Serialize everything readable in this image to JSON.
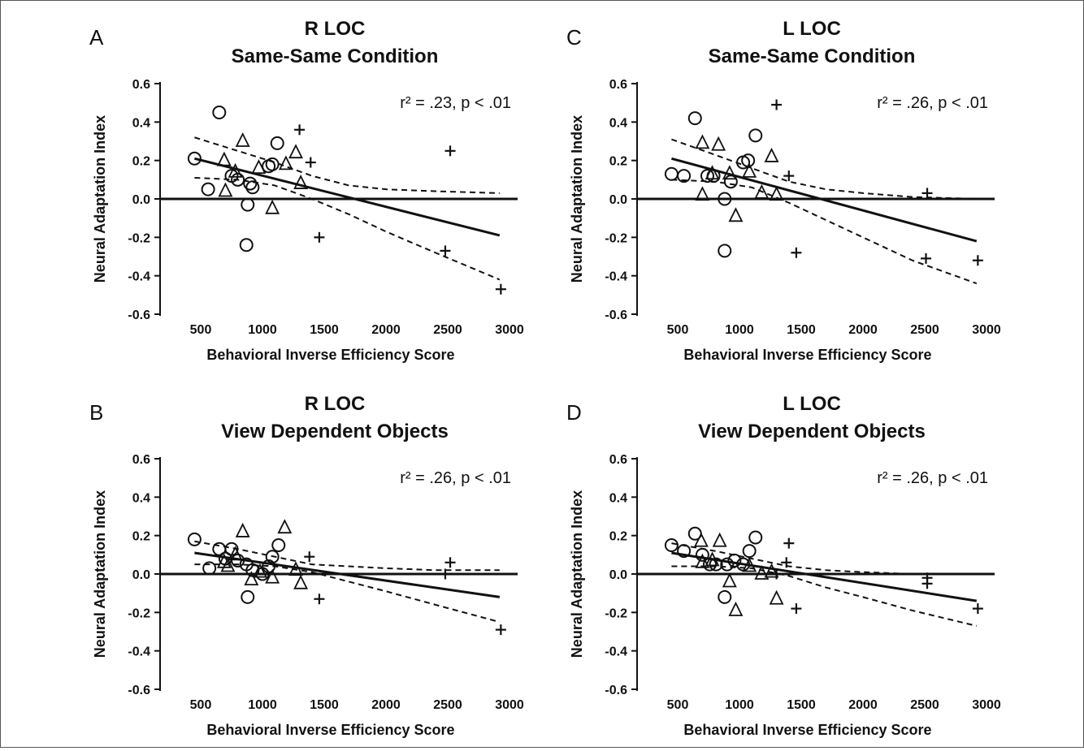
{
  "figure": {
    "panels": [
      {
        "letter": "A",
        "title_line1": "R LOC",
        "title_line2": "Same-Same Condition",
        "stat_text": "r² = .23, p < .01"
      },
      {
        "letter": "C",
        "title_line1": "L LOC",
        "title_line2": "Same-Same Condition",
        "stat_text": "r² = .26, p < .01"
      },
      {
        "letter": "B",
        "title_line1": "R LOC",
        "title_line2": "View Dependent Objects",
        "stat_text": "r² = .26, p < .01"
      },
      {
        "letter": "D",
        "title_line1": "L LOC",
        "title_line2": "View Dependent Objects",
        "stat_text": "r² = .26, p < .01"
      }
    ]
  },
  "chart_data": [
    {
      "type": "scatter",
      "panel": "A",
      "title": "R LOC Same-Same Condition",
      "xlabel": "Behavioral Inverse Efficiency Score",
      "ylabel": "Neural Adaptation Index",
      "xlim": [
        300,
        3100
      ],
      "ylim": [
        -0.6,
        0.6
      ],
      "x_ticks": [
        500,
        1000,
        1500,
        2000,
        2500,
        3000
      ],
      "y_ticks": [
        -0.6,
        -0.4,
        -0.2,
        0.0,
        0.2,
        0.4,
        0.6
      ],
      "annotation": "r² = .23, p < .01",
      "series": [
        {
          "marker": "circle",
          "points": [
            [
              450,
              0.21
            ],
            [
              560,
              0.05
            ],
            [
              650,
              0.45
            ],
            [
              750,
              0.12
            ],
            [
              800,
              0.1
            ],
            [
              880,
              -0.03
            ],
            [
              870,
              -0.24
            ],
            [
              900,
              0.08
            ],
            [
              920,
              0.06
            ],
            [
              1050,
              0.17
            ],
            [
              1080,
              0.18
            ],
            [
              1120,
              0.29
            ]
          ]
        },
        {
          "marker": "triangle",
          "points": [
            [
              690,
              0.2
            ],
            [
              700,
              0.04
            ],
            [
              780,
              0.14
            ],
            [
              840,
              0.3
            ],
            [
              970,
              0.16
            ],
            [
              1080,
              -0.05
            ],
            [
              1190,
              0.18
            ],
            [
              1270,
              0.24
            ],
            [
              1310,
              0.08
            ]
          ]
        },
        {
          "marker": "plus",
          "points": [
            [
              1300,
              0.36
            ],
            [
              1390,
              0.19
            ],
            [
              1460,
              -0.2
            ],
            [
              2520,
              0.25
            ],
            [
              2480,
              -0.27
            ],
            [
              2930,
              -0.47
            ]
          ]
        }
      ],
      "fit": {
        "x": [
          450,
          2920
        ],
        "y": [
          0.21,
          -0.19
        ]
      },
      "ci_upper": {
        "x": [
          450,
          800,
          1100,
          1400,
          1700,
          2000,
          2400,
          2920
        ],
        "y": [
          0.32,
          0.25,
          0.19,
          0.12,
          0.07,
          0.05,
          0.04,
          0.03
        ]
      },
      "ci_lower": {
        "x": [
          450,
          800,
          1100,
          1400,
          1700,
          2000,
          2400,
          2920
        ],
        "y": [
          0.11,
          0.1,
          0.07,
          0.0,
          -0.08,
          -0.17,
          -0.28,
          -0.42
        ]
      }
    },
    {
      "type": "scatter",
      "panel": "C",
      "title": "L LOC Same-Same Condition",
      "xlabel": "Behavioral Inverse Efficiency Score",
      "ylabel": "Neural Adaptation Index",
      "xlim": [
        300,
        3100
      ],
      "ylim": [
        -0.6,
        0.6
      ],
      "x_ticks": [
        500,
        1000,
        1500,
        2000,
        2500,
        3000
      ],
      "y_ticks": [
        -0.6,
        -0.4,
        -0.2,
        0.0,
        0.2,
        0.4,
        0.6
      ],
      "annotation": "r² = .26, p < .01",
      "series": [
        {
          "marker": "circle",
          "points": [
            [
              450,
              0.13
            ],
            [
              550,
              0.12
            ],
            [
              640,
              0.42
            ],
            [
              740,
              0.12
            ],
            [
              790,
              0.12
            ],
            [
              880,
              0.0
            ],
            [
              880,
              -0.27
            ],
            [
              930,
              0.09
            ],
            [
              1030,
              0.19
            ],
            [
              1070,
              0.2
            ],
            [
              1130,
              0.33
            ]
          ]
        },
        {
          "marker": "triangle",
          "points": [
            [
              700,
              0.29
            ],
            [
              700,
              0.02
            ],
            [
              780,
              0.13
            ],
            [
              830,
              0.28
            ],
            [
              920,
              0.13
            ],
            [
              970,
              -0.09
            ],
            [
              1080,
              0.14
            ],
            [
              1180,
              0.03
            ],
            [
              1260,
              0.22
            ],
            [
              1300,
              0.02
            ]
          ]
        },
        {
          "marker": "plus",
          "points": [
            [
              1300,
              0.49
            ],
            [
              1400,
              0.12
            ],
            [
              1460,
              -0.28
            ],
            [
              2520,
              0.03
            ],
            [
              2510,
              -0.31
            ],
            [
              2930,
              -0.32
            ]
          ]
        }
      ],
      "fit": {
        "x": [
          450,
          2920
        ],
        "y": [
          0.21,
          -0.22
        ]
      },
      "ci_upper": {
        "x": [
          450,
          800,
          1100,
          1400,
          1700,
          2000,
          2400,
          2920
        ],
        "y": [
          0.31,
          0.23,
          0.16,
          0.09,
          0.05,
          0.03,
          0.01,
          0.0
        ]
      },
      "ci_lower": {
        "x": [
          450,
          800,
          1100,
          1400,
          1700,
          2000,
          2400,
          2920
        ],
        "y": [
          0.1,
          0.09,
          0.06,
          -0.02,
          -0.11,
          -0.2,
          -0.32,
          -0.44
        ]
      }
    },
    {
      "type": "scatter",
      "panel": "B",
      "title": "R LOC View Dependent Objects",
      "xlabel": "Behavioral Inverse Efficiency Score",
      "ylabel": "Neural Adaptation Index",
      "xlim": [
        300,
        3100
      ],
      "ylim": [
        -0.6,
        0.6
      ],
      "x_ticks": [
        500,
        1000,
        1500,
        2000,
        2500,
        3000
      ],
      "y_ticks": [
        -0.6,
        -0.4,
        -0.2,
        0.0,
        0.2,
        0.4,
        0.6
      ],
      "annotation": "r² = .26, p < .01",
      "series": [
        {
          "marker": "circle",
          "points": [
            [
              450,
              0.18
            ],
            [
              570,
              0.03
            ],
            [
              650,
              0.13
            ],
            [
              700,
              0.08
            ],
            [
              750,
              0.13
            ],
            [
              800,
              0.07
            ],
            [
              870,
              0.05
            ],
            [
              880,
              -0.12
            ],
            [
              920,
              0.02
            ],
            [
              1000,
              0.0
            ],
            [
              1050,
              0.04
            ],
            [
              1080,
              0.09
            ],
            [
              1130,
              0.15
            ]
          ]
        },
        {
          "marker": "triangle",
          "points": [
            [
              690,
              0.06
            ],
            [
              720,
              0.04
            ],
            [
              780,
              0.1
            ],
            [
              840,
              0.22
            ],
            [
              910,
              -0.03
            ],
            [
              980,
              0.01
            ],
            [
              1080,
              -0.02
            ],
            [
              1180,
              0.24
            ],
            [
              1270,
              0.02
            ],
            [
              1310,
              -0.05
            ]
          ]
        },
        {
          "marker": "plus",
          "points": [
            [
              1380,
              0.09
            ],
            [
              1460,
              -0.13
            ],
            [
              2520,
              0.06
            ],
            [
              2480,
              0.0
            ],
            [
              2930,
              -0.29
            ]
          ]
        }
      ],
      "fit": {
        "x": [
          450,
          2920
        ],
        "y": [
          0.11,
          -0.12
        ]
      },
      "ci_upper": {
        "x": [
          450,
          800,
          1100,
          1400,
          1700,
          2000,
          2400,
          2920
        ],
        "y": [
          0.17,
          0.13,
          0.09,
          0.05,
          0.04,
          0.03,
          0.02,
          0.02
        ]
      },
      "ci_lower": {
        "x": [
          450,
          800,
          1100,
          1400,
          1700,
          2000,
          2400,
          2920
        ],
        "y": [
          0.05,
          0.05,
          0.04,
          0.01,
          -0.04,
          -0.09,
          -0.16,
          -0.25
        ]
      }
    },
    {
      "type": "scatter",
      "panel": "D",
      "title": "L LOC View Dependent Objects",
      "xlabel": "Behavioral Inverse Efficiency Score",
      "ylabel": "Neural Adaptation Index",
      "xlim": [
        300,
        3100
      ],
      "ylim": [
        -0.6,
        0.6
      ],
      "x_ticks": [
        500,
        1000,
        1500,
        2000,
        2500,
        3000
      ],
      "y_ticks": [
        -0.6,
        -0.4,
        -0.2,
        0.0,
        0.2,
        0.4,
        0.6
      ],
      "annotation": "r² = .26, p < .01",
      "series": [
        {
          "marker": "circle",
          "points": [
            [
              450,
              0.15
            ],
            [
              550,
              0.12
            ],
            [
              640,
              0.21
            ],
            [
              700,
              0.1
            ],
            [
              760,
              0.05
            ],
            [
              810,
              0.05
            ],
            [
              880,
              -0.12
            ],
            [
              900,
              0.05
            ],
            [
              960,
              0.07
            ],
            [
              1030,
              0.05
            ],
            [
              1080,
              0.12
            ],
            [
              1130,
              0.19
            ]
          ]
        },
        {
          "marker": "triangle",
          "points": [
            [
              690,
              0.17
            ],
            [
              700,
              0.06
            ],
            [
              780,
              0.07
            ],
            [
              840,
              0.17
            ],
            [
              920,
              -0.04
            ],
            [
              970,
              -0.19
            ],
            [
              1080,
              0.04
            ],
            [
              1180,
              0.0
            ],
            [
              1260,
              0.01
            ],
            [
              1300,
              -0.13
            ]
          ]
        },
        {
          "marker": "plus",
          "points": [
            [
              1300,
              0.0
            ],
            [
              1380,
              0.06
            ],
            [
              1400,
              0.16
            ],
            [
              1460,
              -0.18
            ],
            [
              2520,
              -0.02
            ],
            [
              2520,
              -0.05
            ],
            [
              2930,
              -0.18
            ]
          ]
        }
      ],
      "fit": {
        "x": [
          450,
          2920
        ],
        "y": [
          0.11,
          -0.14
        ]
      },
      "ci_upper": {
        "x": [
          450,
          800,
          1100,
          1400,
          1700,
          2000,
          2400,
          2920
        ],
        "y": [
          0.16,
          0.12,
          0.08,
          0.04,
          0.02,
          0.01,
          0.0,
          0.0
        ]
      },
      "ci_lower": {
        "x": [
          450,
          800,
          1100,
          1400,
          1700,
          2000,
          2400,
          2920
        ],
        "y": [
          0.04,
          0.04,
          0.03,
          -0.01,
          -0.07,
          -0.12,
          -0.19,
          -0.27
        ]
      }
    }
  ]
}
